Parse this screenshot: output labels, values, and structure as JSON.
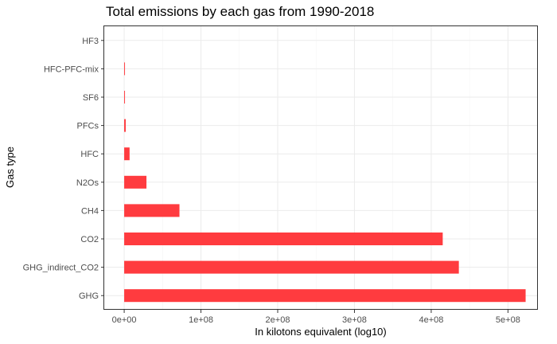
{
  "chart_data": {
    "type": "bar",
    "orientation": "horizontal",
    "title": "Total emissions by each gas from 1990-2018",
    "xlabel": "In kilotons equivalent (log10)",
    "ylabel": "Gas type",
    "categories": [
      "GHG",
      "GHG_indirect_CO2",
      "CO2",
      "N2Os",
      "CH4",
      "HFC",
      "PFCs",
      "SF6",
      "HFC-PFC-mix",
      "HF3"
    ],
    "category_order_bottom_to_top": [
      "GHG",
      "GHG_indirect_CO2",
      "CO2",
      "CH4",
      "N2Os",
      "HFC",
      "PFCs",
      "SF6",
      "HFC-PFC-mix",
      "HF3"
    ],
    "values": {
      "GHG": 523000000,
      "GHG_indirect_CO2": 436000000,
      "CO2": 415000000,
      "CH4": 72000000,
      "N2Os": 29000000,
      "HFC": 7000000,
      "PFCs": 2000000,
      "SF6": 1000000,
      "HFC-PFC-mix": 1000000,
      "HF3": 0
    },
    "xlim": [
      -26000000,
      539000000
    ],
    "xticks": [
      0,
      100000000,
      200000000,
      300000000,
      400000000,
      500000000
    ],
    "xtick_labels": [
      "0e+00",
      "1e+08",
      "2e+08",
      "3e+08",
      "4e+08",
      "5e+08"
    ],
    "bar_color": "#ff3b3f",
    "grid": true,
    "legend": "none"
  }
}
